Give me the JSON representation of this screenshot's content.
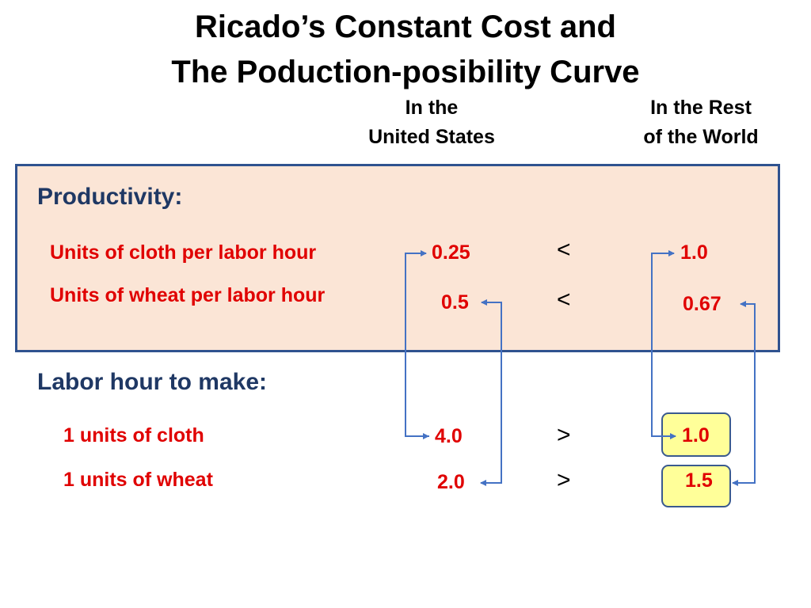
{
  "title": {
    "line1": "Ricado’s Constant Cost and",
    "line2": "The Poduction-posibility Curve"
  },
  "columns": {
    "us": {
      "line1": "In the",
      "line2": "United States"
    },
    "row": {
      "line1": "In the Rest",
      "line2": "of the World"
    }
  },
  "productivity": {
    "heading": "Productivity:",
    "rows": [
      {
        "label": "Units of cloth per labor hour",
        "us": "0.25",
        "op": "<",
        "row": "1.0"
      },
      {
        "label": "Units of wheat per labor hour",
        "us": "0.5",
        "op": "<",
        "row": "0.67"
      }
    ]
  },
  "labor": {
    "heading": "Labor hour to make:",
    "rows": [
      {
        "label": "1 units of cloth",
        "us": "4.0",
        "op": ">",
        "row": "1.0"
      },
      {
        "label": "1 units of wheat",
        "us": "2.0",
        "op": ">",
        "row": "1.5"
      }
    ]
  },
  "colors": {
    "panel_fill": "#fbe5d6",
    "panel_border": "#2f528f",
    "highlight_fill": "#ffff99",
    "arrow": "#4472c4",
    "value_text": "#e00000",
    "heading_text": "#1f3864"
  }
}
